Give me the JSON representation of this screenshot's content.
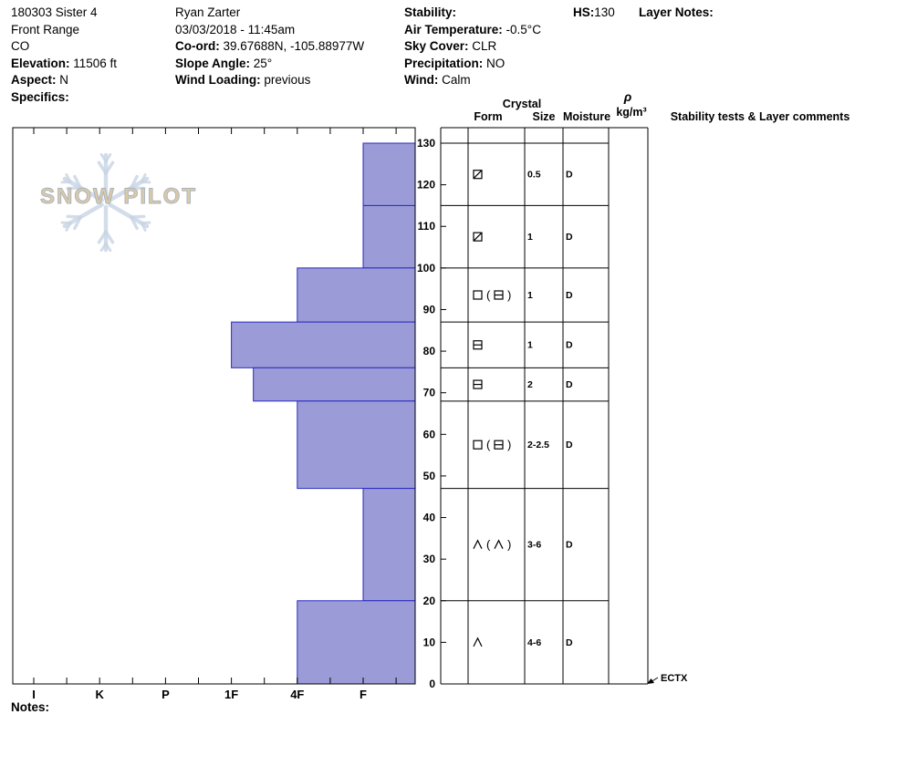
{
  "header": {
    "columns": [
      {
        "name": "location",
        "lines": [
          {
            "label": "",
            "value": "180303 Sister 4"
          },
          {
            "label": "",
            "value": "Front Range"
          },
          {
            "label": "",
            "value": "CO"
          },
          {
            "label": "Elevation:",
            "value": " 11506 ft"
          },
          {
            "label": "Aspect:",
            "value": " N"
          },
          {
            "label": "Specifics:",
            "value": ""
          }
        ]
      },
      {
        "name": "observer",
        "lines": [
          {
            "label": "",
            "value": "Ryan Zarter"
          },
          {
            "label": "",
            "value": "03/03/2018 - 11:45am"
          },
          {
            "label": "Co-ord:",
            "value": " 39.67688N, -105.88977W"
          },
          {
            "label": "Slope Angle:",
            "value": " 25°"
          },
          {
            "label": "Wind Loading:",
            "value": " previous"
          }
        ]
      },
      {
        "name": "conditions",
        "lines": [
          {
            "label": "Stability:",
            "value": ""
          },
          {
            "label": "Air Temperature:",
            "value": " -0.5°C"
          },
          {
            "label": "Sky Cover:",
            "value": " CLR"
          },
          {
            "label": "Precipitation:",
            "value": " NO"
          },
          {
            "label": "Wind:",
            "value": " Calm"
          }
        ]
      },
      {
        "name": "hs",
        "lines": [
          {
            "label": "HS:",
            "value": "130"
          }
        ]
      },
      {
        "name": "layer-notes",
        "lines": [
          {
            "label": "Layer Notes:",
            "value": ""
          }
        ]
      }
    ]
  },
  "logo": {
    "text": "SNOW PILOT"
  },
  "table_header": {
    "crystal": "Crystal",
    "form": "Form",
    "size": "Size",
    "moisture": "Moisture",
    "rho": "ρ",
    "rho_units": "kg/m³",
    "comments": "Stability tests & Layer comments"
  },
  "chart_data": {
    "type": "bar",
    "orientation": "horizontal",
    "xlabel": "",
    "ylabel": "",
    "x_categories": [
      "I",
      "K",
      "P",
      "1F",
      "4F",
      "F"
    ],
    "y_ticks": [
      0,
      10,
      20,
      30,
      40,
      50,
      60,
      70,
      80,
      90,
      100,
      110,
      120,
      130
    ],
    "hs_cm": 130,
    "layers": [
      {
        "top_cm": 130,
        "bottom_cm": 115,
        "hardness": "F",
        "grain_form": {
          "primary": "square-slash",
          "secondary": null
        },
        "grain_size_mm": "0.5",
        "moisture": "D"
      },
      {
        "top_cm": 115,
        "bottom_cm": 100,
        "hardness": "F",
        "grain_form": {
          "primary": "square-slash",
          "secondary": null
        },
        "grain_size_mm": "1",
        "moisture": "D"
      },
      {
        "top_cm": 100,
        "bottom_cm": 87,
        "hardness": "4F",
        "grain_form": {
          "primary": "square",
          "secondary": "square-hline"
        },
        "grain_size_mm": "1",
        "moisture": "D"
      },
      {
        "top_cm": 87,
        "bottom_cm": 76,
        "hardness": "1F",
        "grain_form": {
          "primary": "square-hline",
          "secondary": null
        },
        "grain_size_mm": "1",
        "moisture": "D"
      },
      {
        "top_cm": 76,
        "bottom_cm": 68,
        "hardness": "1F-",
        "grain_form": {
          "primary": "square-hline",
          "secondary": null
        },
        "grain_size_mm": "2",
        "moisture": "D"
      },
      {
        "top_cm": 68,
        "bottom_cm": 47,
        "hardness": "4F",
        "grain_form": {
          "primary": "square",
          "secondary": "square-hline"
        },
        "grain_size_mm": "2-2.5",
        "moisture": "D"
      },
      {
        "top_cm": 47,
        "bottom_cm": 20,
        "hardness": "F",
        "grain_form": {
          "primary": "caret",
          "secondary": "caret"
        },
        "grain_size_mm": "3-6",
        "moisture": "D"
      },
      {
        "top_cm": 20,
        "bottom_cm": 0,
        "hardness": "4F",
        "grain_form": {
          "primary": "caret",
          "secondary": null
        },
        "grain_size_mm": "4-6",
        "moisture": "D"
      }
    ],
    "stability_tests": [
      "ECTX"
    ]
  },
  "colors": {
    "bar_fill": "#9b9bd7",
    "bar_stroke": "#2a2ac0",
    "grid": "#000000",
    "logo_text": "#dccaa6",
    "logo_stroke": "#a9b3be",
    "flake": "#c9d5e5"
  },
  "notes": {
    "label": "Notes:"
  }
}
